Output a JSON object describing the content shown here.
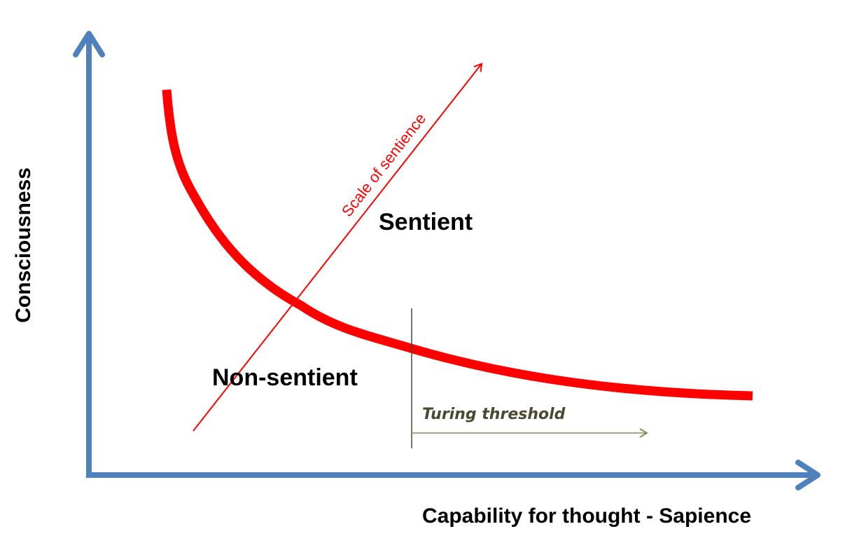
{
  "labels": {
    "y_axis": "Consciousness",
    "x_axis": "Capability for thought - Sapience",
    "sentient": "Sentient",
    "non_sentient": "Non-sentient",
    "scale": "Scale of sentience",
    "turing": "Turing threshold"
  },
  "colors": {
    "axes": "#4f81bd",
    "curve": "#ff0000",
    "scale_arrow": "#ff0000",
    "turing_line": "#4a4a30",
    "turing_arrow": "#8b8b5a",
    "text": "#000000"
  }
}
